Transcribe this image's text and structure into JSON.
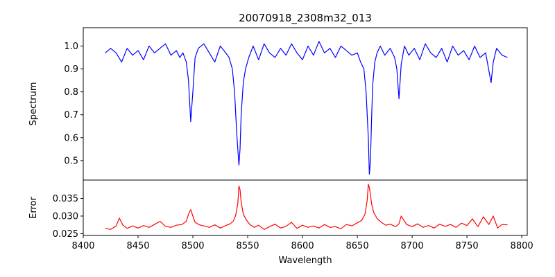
{
  "chart_data": [
    {
      "type": "line",
      "title": "20070918_2308m32_013",
      "xlabel": "",
      "ylabel": "Spectrum",
      "xlim": [
        8400,
        8805
      ],
      "ylim": [
        0.415,
        1.08
      ],
      "yticks": [
        0.5,
        0.6,
        0.7,
        0.8,
        0.9,
        1.0
      ],
      "ytick_labels": [
        "0.5",
        "0.6",
        "0.7",
        "0.8",
        "0.9",
        "1.0"
      ],
      "grid": false,
      "series": [
        {
          "color": "#0000ff",
          "x": [
            8420,
            8425,
            8430,
            8435,
            8440,
            8445,
            8450,
            8455,
            8460,
            8465,
            8470,
            8475,
            8480,
            8485,
            8488,
            8491,
            8494,
            8496,
            8498,
            8500,
            8502,
            8505,
            8510,
            8515,
            8520,
            8525,
            8530,
            8533,
            8536,
            8538,
            8540,
            8542,
            8543,
            8544,
            8546,
            8548,
            8551,
            8555,
            8560,
            8565,
            8570,
            8575,
            8580,
            8585,
            8590,
            8595,
            8600,
            8605,
            8610,
            8615,
            8620,
            8625,
            8630,
            8635,
            8640,
            8645,
            8650,
            8653,
            8656,
            8658,
            8660,
            8661,
            8662,
            8663,
            8664,
            8666,
            8668,
            8671,
            8675,
            8680,
            8684,
            8686,
            8688,
            8690,
            8693,
            8697,
            8702,
            8707,
            8712,
            8717,
            8722,
            8727,
            8732,
            8737,
            8742,
            8747,
            8752,
            8757,
            8762,
            8767,
            8772,
            8774,
            8777,
            8782,
            8787
          ],
          "y": [
            0.97,
            0.99,
            0.97,
            0.93,
            0.99,
            0.96,
            0.98,
            0.94,
            1.0,
            0.97,
            0.99,
            1.01,
            0.96,
            0.98,
            0.95,
            0.97,
            0.93,
            0.85,
            0.67,
            0.8,
            0.95,
            0.99,
            1.01,
            0.97,
            0.93,
            1.0,
            0.97,
            0.95,
            0.9,
            0.8,
            0.62,
            0.48,
            0.55,
            0.7,
            0.84,
            0.9,
            0.95,
            1.0,
            0.94,
            1.01,
            0.97,
            0.95,
            0.99,
            0.96,
            1.01,
            0.97,
            0.94,
            1.0,
            0.96,
            1.02,
            0.97,
            0.99,
            0.95,
            1.0,
            0.98,
            0.96,
            0.97,
            0.93,
            0.9,
            0.8,
            0.6,
            0.44,
            0.5,
            0.68,
            0.83,
            0.93,
            0.97,
            1.0,
            0.96,
            0.99,
            0.95,
            0.9,
            0.77,
            0.92,
            1.0,
            0.96,
            0.99,
            0.94,
            1.01,
            0.97,
            0.95,
            0.99,
            0.93,
            1.0,
            0.96,
            0.98,
            0.94,
            1.0,
            0.95,
            0.97,
            0.84,
            0.93,
            0.99,
            0.96,
            0.95
          ]
        }
      ]
    },
    {
      "type": "line",
      "title": "",
      "xlabel": "Wavelength",
      "ylabel": "Error",
      "xlim": [
        8400,
        8805
      ],
      "ylim": [
        0.0245,
        0.0402
      ],
      "xticks": [
        8400,
        8450,
        8500,
        8550,
        8600,
        8650,
        8700,
        8750,
        8800
      ],
      "xtick_labels": [
        "8400",
        "8450",
        "8500",
        "8550",
        "8600",
        "8650",
        "8700",
        "8750",
        "8800"
      ],
      "yticks": [
        0.025,
        0.03,
        0.035
      ],
      "ytick_labels": [
        "0.025",
        "0.030",
        "0.035"
      ],
      "grid": false,
      "series": [
        {
          "color": "#ff0000",
          "x": [
            8420,
            8425,
            8430,
            8433,
            8436,
            8440,
            8445,
            8450,
            8455,
            8460,
            8465,
            8470,
            8475,
            8480,
            8485,
            8490,
            8494,
            8496,
            8498,
            8500,
            8502,
            8506,
            8510,
            8515,
            8520,
            8525,
            8530,
            8534,
            8537,
            8539,
            8541,
            8542,
            8543,
            8544,
            8546,
            8549,
            8552,
            8556,
            8560,
            8565,
            8570,
            8575,
            8580,
            8585,
            8590,
            8595,
            8600,
            8605,
            8610,
            8615,
            8620,
            8625,
            8630,
            8635,
            8640,
            8645,
            8650,
            8654,
            8657,
            8659,
            8660,
            8661,
            8662,
            8663,
            8665,
            8668,
            8672,
            8676,
            8680,
            8685,
            8688,
            8690,
            8695,
            8700,
            8705,
            8710,
            8715,
            8720,
            8725,
            8730,
            8735,
            8740,
            8745,
            8750,
            8755,
            8760,
            8765,
            8770,
            8774,
            8778,
            8782,
            8787
          ],
          "y": [
            0.0265,
            0.0262,
            0.0272,
            0.0294,
            0.0275,
            0.0265,
            0.0272,
            0.0266,
            0.0273,
            0.0268,
            0.0276,
            0.0285,
            0.0271,
            0.0268,
            0.0274,
            0.0276,
            0.0285,
            0.0305,
            0.0318,
            0.03,
            0.0282,
            0.0275,
            0.0272,
            0.0268,
            0.0275,
            0.0266,
            0.0273,
            0.0278,
            0.0286,
            0.0302,
            0.0335,
            0.0385,
            0.0375,
            0.034,
            0.0305,
            0.0288,
            0.0276,
            0.0268,
            0.0274,
            0.0262,
            0.027,
            0.0277,
            0.0266,
            0.0271,
            0.0282,
            0.0265,
            0.0274,
            0.0268,
            0.0272,
            0.0266,
            0.0276,
            0.0268,
            0.027,
            0.0264,
            0.0276,
            0.0272,
            0.0281,
            0.0288,
            0.0305,
            0.0345,
            0.039,
            0.038,
            0.036,
            0.0335,
            0.031,
            0.0293,
            0.0282,
            0.0274,
            0.0277,
            0.027,
            0.0278,
            0.03,
            0.0276,
            0.027,
            0.0278,
            0.0268,
            0.0273,
            0.0266,
            0.0277,
            0.0271,
            0.0276,
            0.0268,
            0.028,
            0.0273,
            0.0292,
            0.027,
            0.0298,
            0.0276,
            0.03,
            0.0266,
            0.0276,
            0.0275
          ]
        }
      ]
    }
  ]
}
